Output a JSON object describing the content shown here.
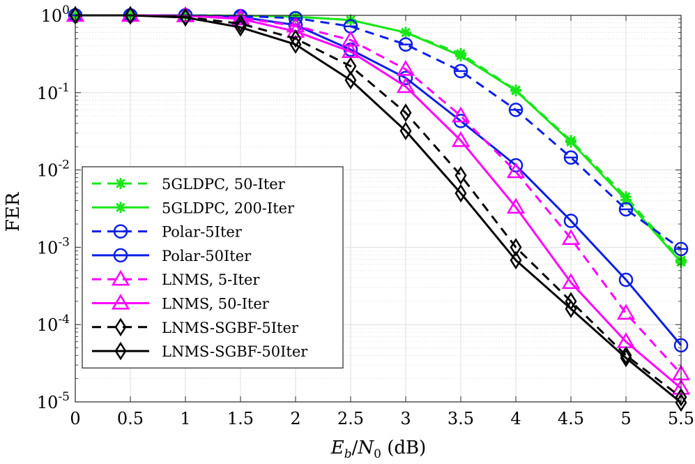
{
  "chart_data": {
    "type": "line",
    "title": "",
    "xlabel": "E_b/N_0 (dB)",
    "xlabel_parts": {
      "e": "E",
      "b": "b",
      "slash": "/",
      "n": "N",
      "zero": "0",
      "unit": " (dB)"
    },
    "ylabel": "FER",
    "y_scale": "log",
    "xlim": [
      0,
      5.5
    ],
    "ylim": [
      1e-05,
      1
    ],
    "grid": true,
    "legend_position": "lower-left",
    "x_tick_labels": [
      "0",
      "0.5",
      "1",
      "1.5",
      "2",
      "2.5",
      "3",
      "3.5",
      "4",
      "4.5",
      "5",
      "5.5"
    ],
    "y_tick_labels": [
      {
        "base": "10",
        "exp": "0"
      },
      {
        "base": "10",
        "exp": "-1"
      },
      {
        "base": "10",
        "exp": "-2"
      },
      {
        "base": "10",
        "exp": "-3"
      },
      {
        "base": "10",
        "exp": "-4"
      },
      {
        "base": "10",
        "exp": "-5"
      }
    ],
    "x": [
      0,
      0.5,
      1,
      1.5,
      2,
      2.5,
      3,
      3.5,
      4,
      4.5,
      5,
      5.5
    ],
    "series": [
      {
        "name": "5GLDPC, 50-Iter",
        "color": "#19e619",
        "dash": "dashed",
        "marker": "asterisk",
        "values": [
          1.0,
          1.0,
          1.0,
          0.99,
          0.96,
          0.87,
          0.6,
          0.32,
          0.108,
          0.024,
          0.0045,
          0.00068
        ]
      },
      {
        "name": "5GLDPC, 200-Iter",
        "color": "#19e619",
        "dash": "solid",
        "marker": "asterisk",
        "values": [
          1.0,
          1.0,
          1.0,
          0.99,
          0.96,
          0.87,
          0.6,
          0.3,
          0.106,
          0.023,
          0.0041,
          0.00064
        ]
      },
      {
        "name": "Polar-5Iter",
        "color": "#0a1ee6",
        "dash": "dashed",
        "marker": "circle-bar",
        "values": [
          1.0,
          1.0,
          1.0,
          0.98,
          0.92,
          0.72,
          0.42,
          0.19,
          0.06,
          0.0145,
          0.0031,
          0.00095
        ]
      },
      {
        "name": "Polar-50Iter",
        "color": "#0a1ee6",
        "dash": "solid",
        "marker": "circle",
        "values": [
          1.0,
          1.0,
          1.0,
          0.95,
          0.75,
          0.36,
          0.155,
          0.043,
          0.0115,
          0.0022,
          0.00038,
          5.4e-05
        ]
      },
      {
        "name": "LNMS, 5-Iter",
        "color": "#ff00ff",
        "dash": "dashed",
        "marker": "triangle",
        "values": [
          1.0,
          1.0,
          0.99,
          0.93,
          0.73,
          0.48,
          0.2,
          0.05,
          0.0095,
          0.0013,
          0.00014,
          2.3e-05
        ]
      },
      {
        "name": "LNMS, 50-Iter",
        "color": "#ff00ff",
        "dash": "solid",
        "marker": "triangle",
        "values": [
          1.0,
          1.0,
          0.99,
          0.9,
          0.62,
          0.34,
          0.12,
          0.024,
          0.0033,
          0.00035,
          6e-05,
          1.5e-05
        ]
      },
      {
        "name": "LNMS-SGBF-5Iter",
        "color": "#000000",
        "dash": "dashed",
        "marker": "diamond",
        "values": [
          1.0,
          1.0,
          0.95,
          0.78,
          0.5,
          0.22,
          0.055,
          0.0085,
          0.001,
          0.0002,
          4e-05,
          1.15e-05
        ]
      },
      {
        "name": "LNMS-SGBF-50Iter",
        "color": "#000000",
        "dash": "solid",
        "marker": "diamond",
        "values": [
          1.0,
          1.0,
          0.94,
          0.7,
          0.42,
          0.145,
          0.032,
          0.005,
          0.00068,
          0.00016,
          3.7e-05,
          9.8e-06
        ]
      }
    ]
  }
}
